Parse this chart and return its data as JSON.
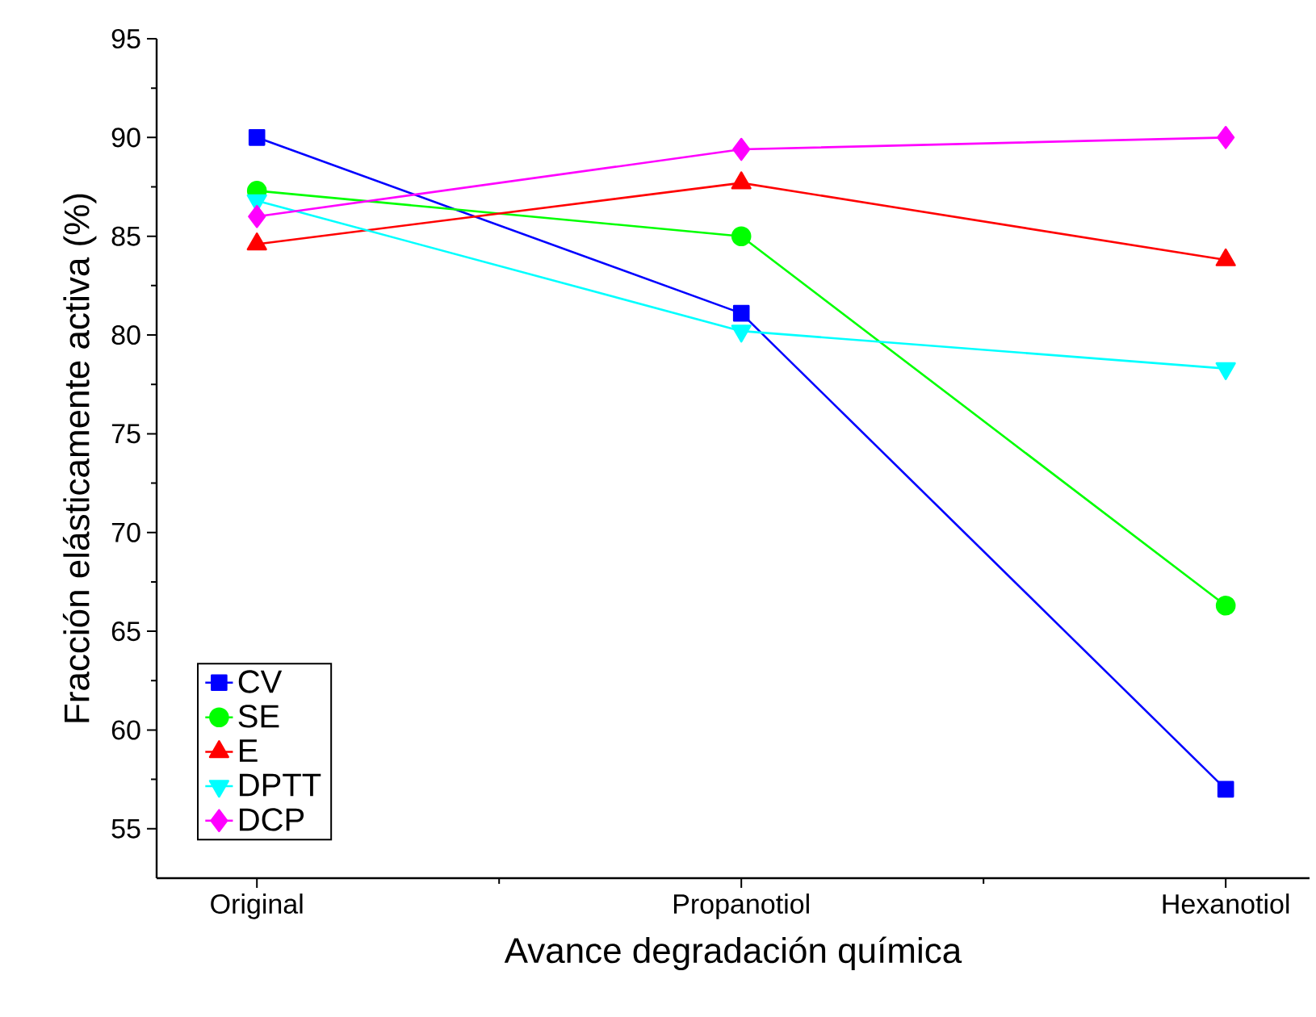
{
  "chart_data": {
    "type": "line",
    "xlabel": "Avance degradación química",
    "ylabel": "Fracción elásticamente activa (%)",
    "categories": [
      "Original",
      "Propanotiol",
      "Hexanotiol"
    ],
    "ylim": [
      52.5,
      95
    ],
    "yticks": [
      55,
      60,
      65,
      70,
      75,
      80,
      85,
      90,
      95
    ],
    "series": [
      {
        "name": "CV",
        "color": "#0000ff",
        "marker": "square",
        "values": [
          90.0,
          81.1,
          57.0
        ]
      },
      {
        "name": "SE",
        "color": "#00ff00",
        "marker": "circle",
        "values": [
          87.3,
          85.0,
          66.3
        ]
      },
      {
        "name": "E",
        "color": "#ff0000",
        "marker": "triangle",
        "values": [
          84.6,
          87.7,
          83.8
        ]
      },
      {
        "name": "DPTT",
        "color": "#00ffff",
        "marker": "triangle down",
        "values": [
          86.8,
          80.2,
          78.3
        ]
      },
      {
        "name": "DCP",
        "color": "#ff00ff",
        "marker": "diamond",
        "values": [
          86.0,
          89.4,
          90.0
        ]
      }
    ],
    "grid": false,
    "legend": "bottom left",
    "line_style": "solid"
  }
}
